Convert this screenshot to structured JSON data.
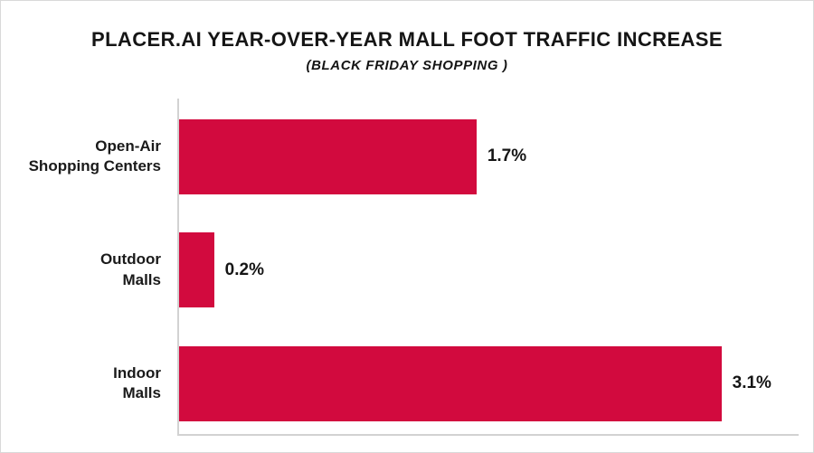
{
  "header": {
    "title": "PLACER.AI YEAR-OVER-YEAR MALL FOOT TRAFFIC INCREASE",
    "subtitle": "(BLACK FRIDAY SHOPPING )"
  },
  "colors": {
    "bar": "#d20a3e",
    "axis": "#d2d2d2",
    "text": "#151515"
  },
  "chart_data": {
    "type": "bar",
    "orientation": "horizontal",
    "title": "PLACER.AI YEAR-OVER-YEAR MALL FOOT TRAFFIC INCREASE",
    "subtitle": "(BLACK FRIDAY SHOPPING )",
    "categories": [
      "Open-Air Shopping Centers",
      "Outdoor Malls",
      "Indoor Malls"
    ],
    "values": [
      1.7,
      0.2,
      3.1
    ],
    "value_labels": [
      "1.7%",
      "0.2%",
      "3.1%"
    ],
    "unit": "%",
    "xlim": [
      0,
      3.5
    ],
    "grid": false,
    "legend": false,
    "rows": [
      {
        "label": "Open-Air\nShopping Centers",
        "value": 1.7,
        "value_label": "1.7%"
      },
      {
        "label": "Outdoor\nMalls",
        "value": 0.2,
        "value_label": "0.2%"
      },
      {
        "label": "Indoor\nMalls",
        "value": 3.1,
        "value_label": "3.1%"
      }
    ]
  }
}
